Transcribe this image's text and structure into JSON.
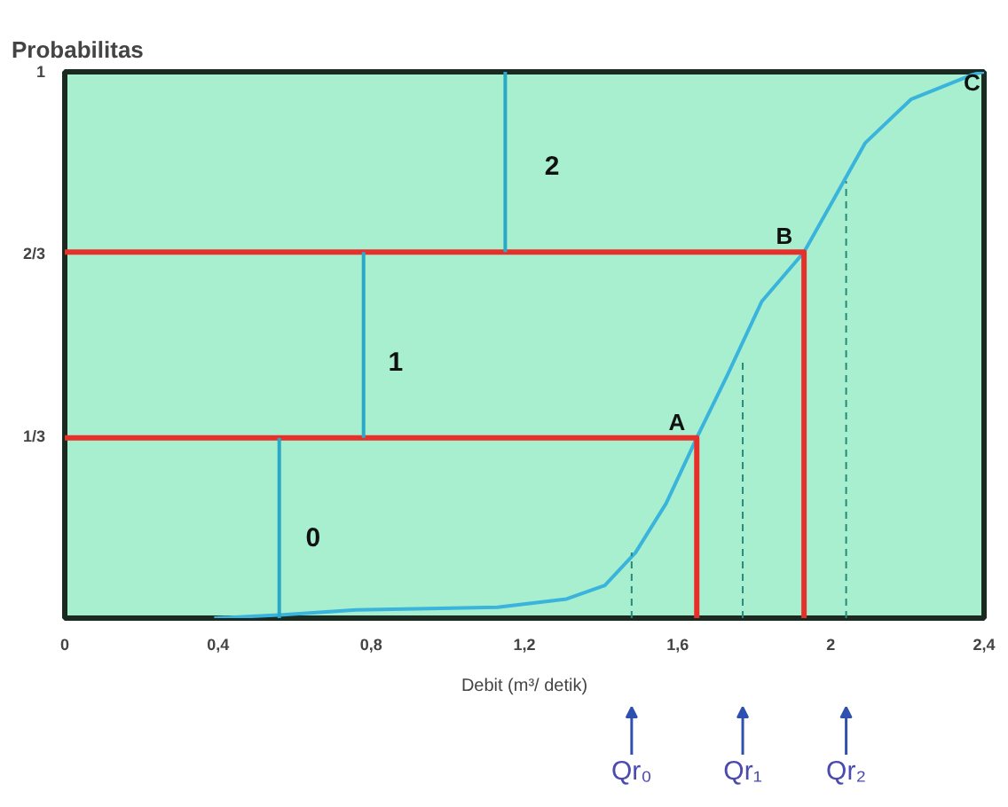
{
  "chart_data": {
    "type": "line",
    "ylabel": "Probabilitas",
    "xlabel": "Debit (m³/ detik)",
    "xlim": [
      0,
      2.4
    ],
    "ylim": [
      0,
      1
    ],
    "xticks": [
      0,
      {
        "value": 0.4,
        "label": "0,4"
      },
      {
        "value": 0.8,
        "label": "0,8"
      },
      {
        "value": 1.2,
        "label": "1,2"
      },
      {
        "value": 1.6,
        "label": "1,6"
      },
      2,
      {
        "value": 2.4,
        "label": "2,4"
      }
    ],
    "yticks": [
      {
        "value": 0.3333,
        "label": "1/3"
      },
      {
        "value": 0.6667,
        "label": "2/3"
      },
      1
    ],
    "grid": false,
    "marker": "none",
    "series": [
      {
        "color": "#3ab4dc",
        "line_style": "solid",
        "x": [
          0.39,
          0.57,
          0.76,
          1.13,
          1.31,
          1.41,
          1.49,
          1.57,
          1.65,
          1.73,
          1.82,
          1.93,
          2.01,
          2.09,
          2.21,
          2.37,
          2.4
        ],
        "values": [
          0,
          0.006,
          0.015,
          0.02,
          0.035,
          0.06,
          0.12,
          0.21,
          0.33,
          0.445,
          0.58,
          0.67,
          0.77,
          0.87,
          0.95,
          0.995,
          1
        ]
      },
      {
        "color": "#e8302a",
        "line_style": "solid",
        "x": [
          0,
          1.65,
          1.65
        ],
        "values": [
          0.33,
          0.33,
          0
        ]
      },
      {
        "color": "#e8302a",
        "line_style": "solid",
        "x": [
          0,
          1.93,
          1.93
        ],
        "values": [
          0.67,
          0.67,
          0
        ]
      },
      {
        "color": "#2aa8c8",
        "line_style": "solid",
        "x": [
          0.56,
          0.56
        ],
        "values": [
          0,
          0.33
        ]
      },
      {
        "color": "#2aa8c8",
        "line_style": "solid",
        "x": [
          0.78,
          0.78
        ],
        "values": [
          0.33,
          0.67
        ]
      },
      {
        "color": "#2aa8c8",
        "line_style": "solid",
        "x": [
          1.15,
          1.15
        ],
        "values": [
          0.67,
          1
        ]
      },
      {
        "color": "#2a8a7a",
        "line_style": "dashed",
        "x": [
          1.48,
          1.48
        ],
        "values": [
          0,
          0.12
        ]
      },
      {
        "color": "#2a8a7a",
        "line_style": "dashed",
        "x": [
          1.77,
          1.77
        ],
        "values": [
          0,
          0.47
        ]
      },
      {
        "color": "#2a8a7a",
        "line_style": "dashed",
        "x": [
          2.04,
          2.04
        ],
        "values": [
          0,
          0.8
        ]
      }
    ],
    "annotations": [
      {
        "text": "A",
        "x": 1.65,
        "y": 0.33
      },
      {
        "text": "B",
        "x": 1.93,
        "y": 0.67
      },
      {
        "text": "C",
        "x": 2.4,
        "y": 1
      },
      "0",
      "1",
      "2",
      "Qr₀",
      "Qr₁",
      "Qr₂"
    ]
  }
}
